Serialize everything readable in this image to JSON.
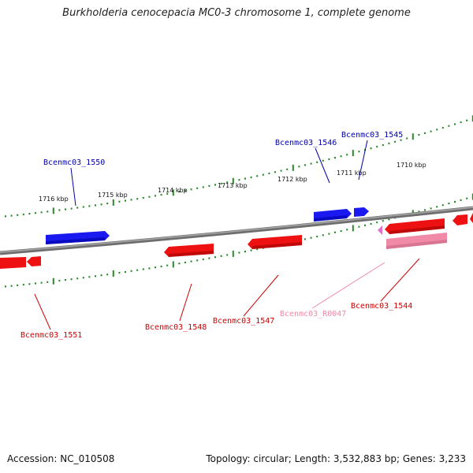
{
  "title": "Burkholderia cenocepacia MC0-3 chromosome 1, complete genome",
  "footer": {
    "accession": "Accession: NC_010508",
    "summary": "Topology: circular; Length: 3,532,883 bp; Genes: 3,233"
  },
  "colors": {
    "forward_gene": "#1a1af0",
    "reverse_gene": "#ee1111",
    "rna_gene": "#f08aa6",
    "backbone": "#808080",
    "ticks": "#2a8a2a"
  },
  "scale_labels": [
    "1716 kbp",
    "1715 kbp",
    "1714 kbp",
    "1713 kbp",
    "1712 kbp",
    "1711 kbp",
    "1710 kbp"
  ],
  "genes": [
    {
      "name": "Bcenmc03_1550",
      "strand": "+",
      "type": "CDS"
    },
    {
      "name": "Bcenmc03_1546",
      "strand": "+",
      "type": "CDS"
    },
    {
      "name": "Bcenmc03_1545",
      "strand": "+",
      "type": "CDS"
    },
    {
      "name": "Bcenmc03_1551",
      "strand": "-",
      "type": "CDS"
    },
    {
      "name": "Bcenmc03_1548",
      "strand": "-",
      "type": "CDS"
    },
    {
      "name": "Bcenmc03_1547",
      "strand": "-",
      "type": "CDS"
    },
    {
      "name": "Bcenmc03_R0047",
      "strand": "-",
      "type": "RNA"
    },
    {
      "name": "Bcenmc03_1544",
      "strand": "-",
      "type": "CDS"
    }
  ]
}
